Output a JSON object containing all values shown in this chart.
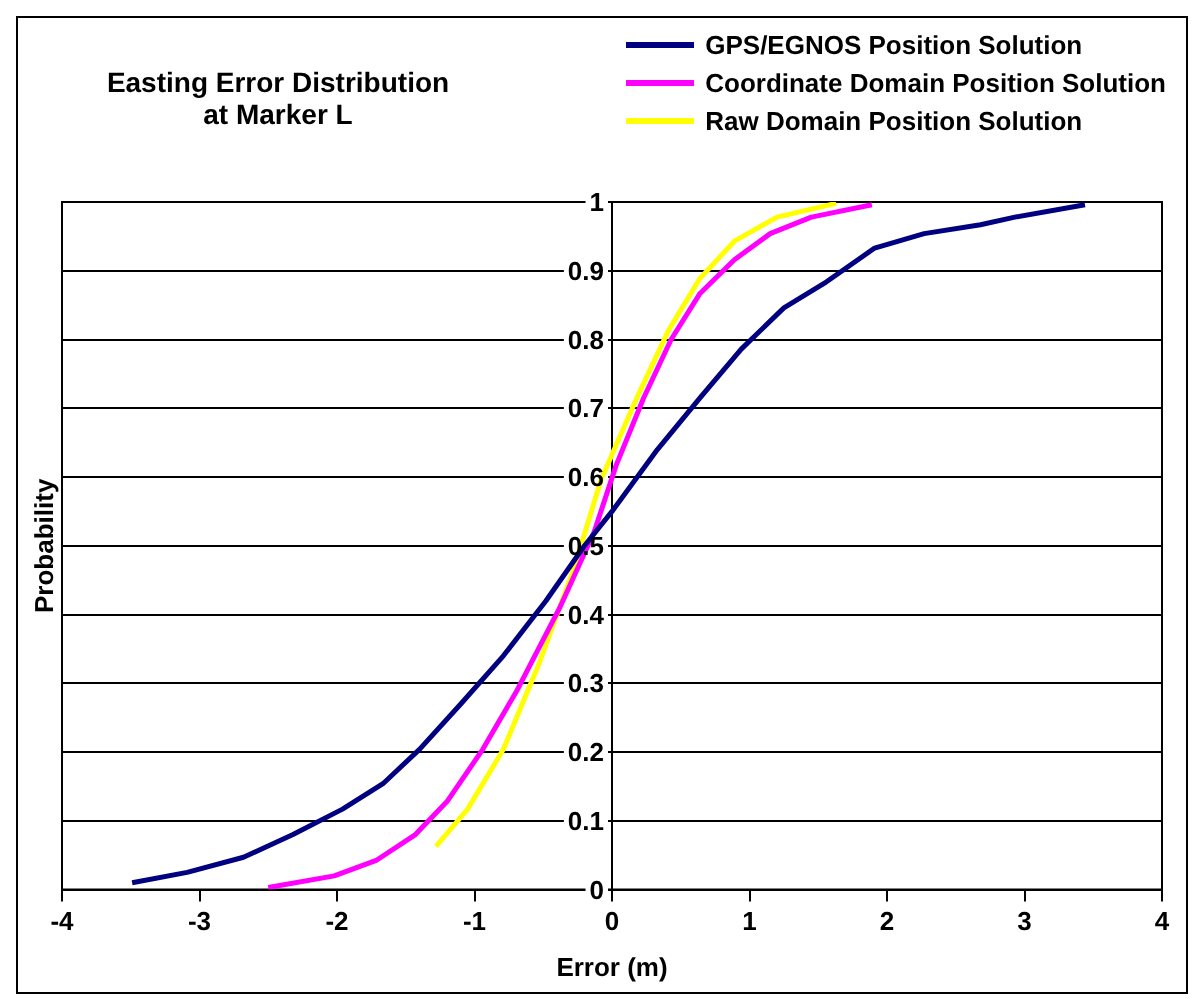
{
  "chart_data": {
    "type": "line",
    "title": "Easting Error Distribution\nat Marker L",
    "xlabel": "Error (m)",
    "ylabel": "Probability",
    "xlim": [
      -4,
      4
    ],
    "xticks": [
      -4,
      -3,
      -2,
      -1,
      0,
      1,
      2,
      3,
      4
    ],
    "ylim": [
      0,
      1
    ],
    "yticks": [
      0,
      0.1,
      0.2,
      0.3,
      0.4,
      0.5,
      0.6,
      0.7,
      0.8,
      0.9,
      1
    ],
    "grid": "y",
    "legend": "top right",
    "series": [
      {
        "name": "GPS/EGNOS Position Solution",
        "color": "#000080",
        "x": [
          -3.49,
          -3.09,
          -2.68,
          -2.32,
          -1.96,
          -1.66,
          -1.4,
          -1.1,
          -0.79,
          -0.48,
          -0.2,
          0,
          0.33,
          0.64,
          0.94,
          1.25,
          1.56,
          1.91,
          2.27,
          2.68,
          2.93,
          3.44
        ],
        "values": [
          0.01,
          0.025,
          0.047,
          0.08,
          0.117,
          0.155,
          0.204,
          0.27,
          0.34,
          0.42,
          0.5,
          0.55,
          0.64,
          0.715,
          0.786,
          0.846,
          0.884,
          0.933,
          0.954,
          0.967,
          0.978,
          0.996
        ]
      },
      {
        "name": "Coordinate Domain Position Solution",
        "color": "#ff00ff",
        "x": [
          -2.5,
          -2.02,
          -1.71,
          -1.43,
          -1.2,
          -0.94,
          -0.69,
          -0.38,
          -0.13,
          0.03,
          0.23,
          0.43,
          0.64,
          0.89,
          1.15,
          1.45,
          1.89
        ],
        "values": [
          0.003,
          0.02,
          0.043,
          0.08,
          0.128,
          0.204,
          0.29,
          0.41,
          0.52,
          0.617,
          0.715,
          0.8,
          0.867,
          0.916,
          0.954,
          0.978,
          0.996
        ]
      },
      {
        "name": "Raw Domain Position Solution",
        "color": "#ffff00",
        "x": [
          -1.28,
          -1.05,
          -0.79,
          -0.54,
          -0.28,
          -0.08,
          0.18,
          0.41,
          0.64,
          0.89,
          1.2,
          1.63
        ],
        "values": [
          0.063,
          0.117,
          0.204,
          0.324,
          0.465,
          0.596,
          0.715,
          0.813,
          0.889,
          0.943,
          0.978,
          0.998
        ]
      }
    ]
  }
}
